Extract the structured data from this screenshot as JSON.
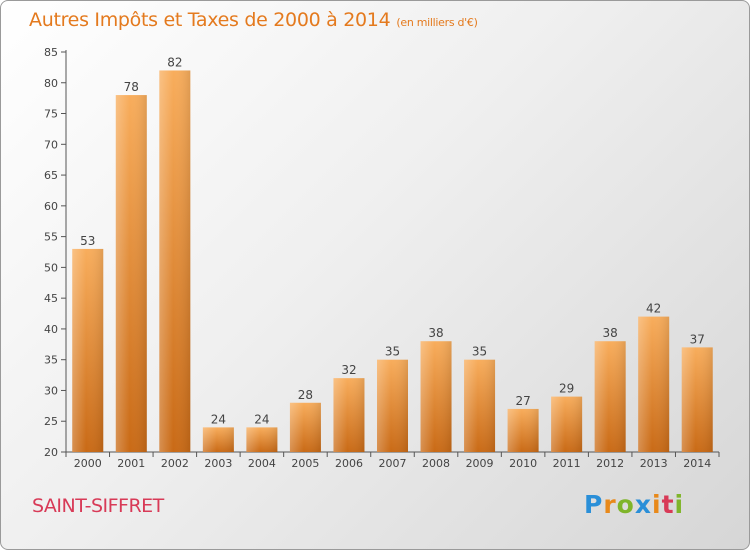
{
  "title": "Autres Impôts et Taxes de 2000 à 2014",
  "unit_note": "(en milliers d'€)",
  "location": "SAINT-SIFFRET",
  "logo": {
    "text": "Proxiti",
    "letters": [
      "P",
      "r",
      "o",
      "x",
      "i",
      "t",
      "i"
    ],
    "colors": [
      "#2a8fd8",
      "#e8891a",
      "#7fb52a",
      "#2a8fd8",
      "#e8891a",
      "#d83a57",
      "#7fb52a"
    ]
  },
  "colors": {
    "bar": "#ef8f34",
    "bar_light": "#f8ad5c",
    "bar_dark": "#c96a16",
    "title": "#e47a1e",
    "location": "#d83a57"
  },
  "chart_data": {
    "type": "bar",
    "title": "Autres Impôts et Taxes de 2000 à 2014",
    "xlabel": "",
    "ylabel": "",
    "categories": [
      "2000",
      "2001",
      "2002",
      "2003",
      "2004",
      "2005",
      "2006",
      "2007",
      "2008",
      "2009",
      "2010",
      "2011",
      "2012",
      "2013",
      "2014"
    ],
    "values": [
      53,
      78,
      82,
      24,
      24,
      28,
      32,
      35,
      38,
      35,
      27,
      29,
      38,
      42,
      37
    ],
    "ylim": [
      20,
      85
    ],
    "yticks": [
      20,
      25,
      30,
      35,
      40,
      45,
      50,
      55,
      60,
      65,
      70,
      75,
      80,
      85
    ],
    "grid": false,
    "data_labels": true
  }
}
